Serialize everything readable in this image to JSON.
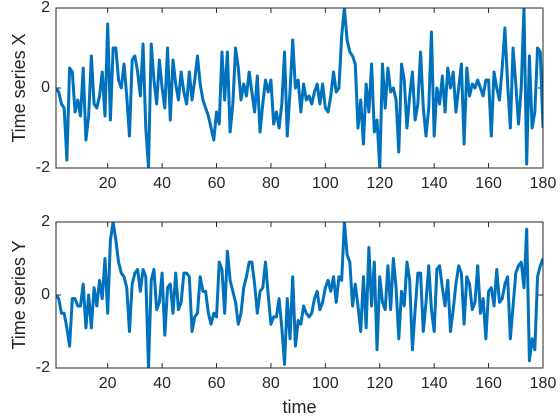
{
  "chart_data": [
    {
      "type": "line",
      "ylabel": "Time series X",
      "color": "#0072bd",
      "x": [
        1,
        2,
        3,
        4,
        5,
        6,
        7,
        8,
        9,
        10,
        11,
        12,
        13,
        14,
        15,
        16,
        17,
        18,
        19,
        20,
        21,
        22,
        23,
        24,
        25,
        26,
        27,
        28,
        29,
        30,
        31,
        32,
        33,
        34,
        35,
        36,
        37,
        38,
        39,
        40,
        41,
        42,
        43,
        44,
        45,
        46,
        47,
        48,
        49,
        50,
        51,
        52,
        53,
        54,
        55,
        56,
        57,
        58,
        59,
        60,
        61,
        62,
        63,
        64,
        65,
        66,
        67,
        68,
        69,
        70,
        71,
        72,
        73,
        74,
        75,
        76,
        77,
        78,
        79,
        80,
        81,
        82,
        83,
        84,
        85,
        86,
        87,
        88,
        89,
        90,
        91,
        92,
        93,
        94,
        95,
        96,
        97,
        98,
        99,
        100,
        101,
        102,
        103,
        104,
        105,
        106,
        107,
        108,
        109,
        110,
        111,
        112,
        113,
        114,
        115,
        116,
        117,
        118,
        119,
        120,
        121,
        122,
        123,
        124,
        125,
        126,
        127,
        128,
        129,
        130,
        131,
        132,
        133,
        134,
        135,
        136,
        137,
        138,
        139,
        140,
        141,
        142,
        143,
        144,
        145,
        146,
        147,
        148,
        149,
        150,
        151,
        152,
        153,
        154,
        155,
        156,
        157,
        158,
        159,
        160,
        161,
        162,
        163,
        164,
        165,
        166,
        167,
        168,
        169,
        170,
        171,
        172,
        173,
        174,
        175,
        176,
        177,
        178,
        179,
        180
      ],
      "values": [
        0,
        -0.1,
        -0.4,
        -0.5,
        -1.8,
        0.5,
        0.4,
        -0.6,
        -0.3,
        -0.7,
        0.5,
        -1.3,
        -0.7,
        0.8,
        -0.4,
        -0.5,
        -0.2,
        0.4,
        -0.7,
        1.6,
        -0.8,
        1.0,
        1.0,
        0.2,
        0.0,
        0.6,
        -0.2,
        -1.2,
        0.7,
        0.8,
        0.4,
        -0.2,
        1.1,
        -1.0,
        -2.0,
        1.1,
        0.2,
        -0.4,
        0.7,
        0.0,
        -0.5,
        1.0,
        -0.8,
        0.7,
        0.1,
        -0.3,
        0.4,
        -0.1,
        -0.4,
        0.4,
        -0.3,
        0.2,
        0.8,
        0.1,
        -0.3,
        -0.5,
        -0.7,
        -1.0,
        -1.3,
        -0.6,
        -0.9,
        0.9,
        -0.3,
        0.9,
        -1.1,
        -0.4,
        1.0,
        0.5,
        -0.3,
        0.1,
        -0.2,
        0.4,
        -0.1,
        -0.6,
        0.3,
        -1.1,
        -0.4,
        0.2,
        -0.1,
        0.2,
        -0.9,
        -0.6,
        -1.0,
        -0.4,
        0.9,
        -1.2,
        -0.1,
        1.2,
        0.0,
        0.2,
        -0.6,
        0.1,
        -0.3,
        -0.2,
        -0.4,
        -0.1,
        0.1,
        -0.4,
        0.1,
        -0.5,
        -0.6,
        -0.2,
        0.4,
        -0.1,
        0.0,
        1.3,
        2.0,
        1.2,
        0.9,
        0.8,
        0.6,
        -1.0,
        -0.3,
        -1.4,
        0.1,
        -0.6,
        0.6,
        -1.1,
        -0.8,
        -2.0,
        0.6,
        -0.5,
        0.5,
        -0.1,
        0.0,
        -0.3,
        -1.6,
        0.6,
        0.2,
        -1.0,
        -0.2,
        0.4,
        -0.8,
        -0.4,
        0.9,
        -0.5,
        -1.2,
        -0.5,
        1.4,
        -1.2,
        0.0,
        -0.4,
        0.3,
        -0.6,
        0.5,
        0.0,
        0.4,
        -0.6,
        0.0,
        0.6,
        -1.4,
        0.5,
        -0.2,
        0.1,
        0.0,
        0.2,
        0.0,
        -0.2,
        0.2,
        0.2,
        -1.2,
        0.4,
        0.0,
        -0.3,
        0.5,
        1.5,
        0.1,
        -1.0,
        1.0,
        0.1,
        -0.9,
        0.0,
        2.0,
        -1.9,
        0.8,
        -1.0,
        -0.6,
        1.0,
        0.9,
        -1.0
      ],
      "xlim": [
        1,
        180
      ],
      "xticks": [
        20,
        40,
        60,
        80,
        100,
        120,
        140,
        160,
        180
      ],
      "ylim": [
        -2,
        2
      ],
      "yticks": [
        -2,
        0,
        2
      ]
    },
    {
      "type": "line",
      "ylabel": "Time series Y",
      "xlabel": "time",
      "color": "#0072bd",
      "x": [
        1,
        2,
        3,
        4,
        5,
        6,
        7,
        8,
        9,
        10,
        11,
        12,
        13,
        14,
        15,
        16,
        17,
        18,
        19,
        20,
        21,
        22,
        23,
        24,
        25,
        26,
        27,
        28,
        29,
        30,
        31,
        32,
        33,
        34,
        35,
        36,
        37,
        38,
        39,
        40,
        41,
        42,
        43,
        44,
        45,
        46,
        47,
        48,
        49,
        50,
        51,
        52,
        53,
        54,
        55,
        56,
        57,
        58,
        59,
        60,
        61,
        62,
        63,
        64,
        65,
        66,
        67,
        68,
        69,
        70,
        71,
        72,
        73,
        74,
        75,
        76,
        77,
        78,
        79,
        80,
        81,
        82,
        83,
        84,
        85,
        86,
        87,
        88,
        89,
        90,
        91,
        92,
        93,
        94,
        95,
        96,
        97,
        98,
        99,
        100,
        101,
        102,
        103,
        104,
        105,
        106,
        107,
        108,
        109,
        110,
        111,
        112,
        113,
        114,
        115,
        116,
        117,
        118,
        119,
        120,
        121,
        122,
        123,
        124,
        125,
        126,
        127,
        128,
        129,
        130,
        131,
        132,
        133,
        134,
        135,
        136,
        137,
        138,
        139,
        140,
        141,
        142,
        143,
        144,
        145,
        146,
        147,
        148,
        149,
        150,
        151,
        152,
        153,
        154,
        155,
        156,
        157,
        158,
        159,
        160,
        161,
        162,
        163,
        164,
        165,
        166,
        167,
        168,
        169,
        170,
        171,
        172,
        173,
        174,
        175,
        176,
        177,
        178,
        179,
        180
      ],
      "values": [
        0,
        -0.1,
        -0.5,
        -0.5,
        -0.9,
        -1.4,
        -0.1,
        -0.1,
        -0.3,
        -0.3,
        0.3,
        -0.9,
        0.0,
        -0.9,
        0.2,
        -0.3,
        0.4,
        -0.1,
        1.0,
        -0.5,
        1.5,
        2.0,
        1.5,
        0.9,
        0.6,
        0.5,
        0.2,
        -1.0,
        0.3,
        0.6,
        0.7,
        0.1,
        0.7,
        0.5,
        -2.0,
        0.4,
        0.7,
        -0.4,
        -0.2,
        0.6,
        -1.1,
        0.2,
        0.3,
        -0.5,
        0.6,
        -0.4,
        -0.2,
        0.6,
        0.6,
        0.5,
        -1.0,
        -0.6,
        -0.5,
        0.5,
        0.1,
        0.1,
        -0.5,
        -0.8,
        -0.5,
        -0.6,
        0.9,
        0.7,
        -0.5,
        1.2,
        0.4,
        0.1,
        -0.2,
        -0.8,
        -0.5,
        0.2,
        0.5,
        0.9,
        0.9,
        0.3,
        -0.5,
        0.1,
        0.2,
        0.9,
        0.0,
        -0.8,
        -0.6,
        -0.6,
        -0.1,
        -0.9,
        -1.9,
        -0.1,
        -1.2,
        0.5,
        -1.4,
        -0.7,
        -0.8,
        -0.3,
        -0.5,
        -0.6,
        -0.5,
        -0.1,
        0.1,
        -0.4,
        -0.2,
        0.2,
        0.4,
        0.1,
        0.5,
        -0.2,
        0.5,
        0.4,
        2.0,
        1.1,
        0.9,
        -0.3,
        0.3,
        -0.3,
        -1.0,
        0.5,
        -0.9,
        1.3,
        -0.3,
        0.9,
        -1.5,
        0.5,
        -0.2,
        -0.4,
        0.8,
        -0.4,
        1.0,
        0.2,
        -1.2,
        0.1,
        -0.3,
        0.9,
        0.4,
        -1.5,
        -0.4,
        0.6,
        0.6,
        -1.0,
        -0.2,
        0.8,
        -0.4,
        -1.0,
        0.7,
        0.8,
        0.2,
        -0.3,
        0.4,
        -1.0,
        -0.4,
        0.3,
        0.8,
        0.6,
        -0.8,
        0.5,
        0.3,
        -0.4,
        -0.2,
        0.8,
        -0.5,
        -0.1,
        -1.2,
        0.1,
        0.2,
        -0.3,
        0.7,
        -0.2,
        -0.1,
        0.3,
        0.5,
        -1.2,
        -0.3,
        0.6,
        0.8,
        0.9,
        0.2,
        1.8,
        -1.8,
        -1.2,
        -1.5,
        0.5,
        0.8,
        1.0
      ],
      "xlim": [
        1,
        180
      ],
      "xticks": [
        20,
        40,
        60,
        80,
        100,
        120,
        140,
        160,
        180
      ],
      "ylim": [
        -2,
        2
      ],
      "yticks": [
        -2,
        0,
        2
      ]
    }
  ]
}
